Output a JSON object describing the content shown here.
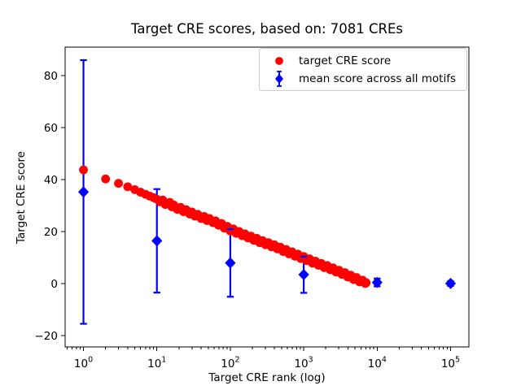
{
  "chart_data": {
    "type": "scatter",
    "title": "Target CRE scores, based on: 7081 CREs",
    "xlabel": "Target CRE rank (log)",
    "ylabel": "Target CRE score",
    "n_cres": 7081,
    "x_scale": "log",
    "grid": false,
    "legend_position": "upper right",
    "xlim": [
      0.5623,
      177828
    ],
    "ylim": [
      -24.3,
      91.0
    ],
    "x_ticks": [
      {
        "value": 1,
        "label": "10^0"
      },
      {
        "value": 10,
        "label": "10^1"
      },
      {
        "value": 100,
        "label": "10^2"
      },
      {
        "value": 1000,
        "label": "10^3"
      },
      {
        "value": 10000,
        "label": "10^4"
      },
      {
        "value": 100000,
        "label": "10^5"
      }
    ],
    "y_ticks": [
      {
        "value": -20,
        "label": "−20"
      },
      {
        "value": 0,
        "label": "0"
      },
      {
        "value": 20,
        "label": "20"
      },
      {
        "value": 40,
        "label": "40"
      },
      {
        "value": 60,
        "label": "60"
      },
      {
        "value": 80,
        "label": "80"
      }
    ],
    "series": [
      {
        "name": "target CRE score",
        "type": "scatter",
        "marker": "circle",
        "color": "#ff0000",
        "points": [
          [
            1,
            43.8
          ],
          [
            2,
            40.3
          ],
          [
            3,
            38.6
          ],
          [
            4,
            37.3
          ],
          [
            5,
            36.2
          ],
          [
            6,
            35.2
          ],
          [
            7,
            34.4
          ],
          [
            8,
            33.7
          ],
          [
            9,
            33.1
          ],
          [
            10,
            32.5
          ],
          [
            11,
            31.5
          ],
          [
            12,
            32.2
          ],
          [
            13,
            30.5
          ],
          [
            15,
            31.3
          ],
          [
            16,
            29.6
          ],
          [
            17,
            30.3
          ],
          [
            19,
            28.6
          ],
          [
            21,
            29.4
          ],
          [
            23,
            27.7
          ],
          [
            25,
            28.5
          ],
          [
            28,
            26.8
          ],
          [
            30,
            27.6
          ],
          [
            33,
            26.0
          ],
          [
            36,
            26.7
          ],
          [
            40,
            25.1
          ],
          [
            44,
            25.9
          ],
          [
            48,
            24.3
          ],
          [
            52,
            25.1
          ],
          [
            58,
            23.5
          ],
          [
            63,
            24.2
          ],
          [
            69,
            22.5
          ],
          [
            76,
            23.2
          ],
          [
            83,
            21.4
          ],
          [
            91,
            22.1
          ],
          [
            100,
            20.3
          ],
          [
            110,
            21.1
          ],
          [
            120,
            19.4
          ],
          [
            132,
            20.1
          ],
          [
            145,
            18.5
          ],
          [
            158,
            19.2
          ],
          [
            174,
            17.6
          ],
          [
            191,
            18.3
          ],
          [
            209,
            16.7
          ],
          [
            229,
            17.5
          ],
          [
            251,
            15.8
          ],
          [
            275,
            16.6
          ],
          [
            302,
            15.0
          ],
          [
            331,
            15.8
          ],
          [
            363,
            14.2
          ],
          [
            398,
            15.0
          ],
          [
            437,
            13.4
          ],
          [
            479,
            14.1
          ],
          [
            525,
            12.4
          ],
          [
            575,
            13.2
          ],
          [
            631,
            11.5
          ],
          [
            692,
            12.3
          ],
          [
            759,
            10.6
          ],
          [
            832,
            11.4
          ],
          [
            912,
            9.7
          ],
          [
            1000,
            10.5
          ],
          [
            1096,
            8.9
          ],
          [
            1202,
            9.6
          ],
          [
            1318,
            7.9
          ],
          [
            1445,
            8.7
          ],
          [
            1585,
            7.1
          ],
          [
            1738,
            7.8
          ],
          [
            1905,
            6.2
          ],
          [
            2089,
            7.0
          ],
          [
            2291,
            5.4
          ],
          [
            2512,
            6.1
          ],
          [
            2754,
            4.5
          ],
          [
            3020,
            5.2
          ],
          [
            3311,
            3.6
          ],
          [
            3631,
            4.3
          ],
          [
            3981,
            2.6
          ],
          [
            4365,
            3.3
          ],
          [
            4786,
            1.6
          ],
          [
            5248,
            2.4
          ],
          [
            5754,
            0.7
          ],
          [
            6310,
            1.4
          ],
          [
            6918,
            0.1
          ],
          [
            7081,
            0.4
          ]
        ]
      },
      {
        "name": "mean score across all motifs",
        "type": "errorbar",
        "marker": "diamond",
        "color": "#0000ff",
        "points": [
          {
            "x": 1,
            "y": 35.3,
            "lo": -15.4,
            "hi": 86.0
          },
          {
            "x": 10,
            "y": 16.5,
            "lo": -3.4,
            "hi": 36.4
          },
          {
            "x": 100,
            "y": 8.0,
            "lo": -5.0,
            "hi": 21.0
          },
          {
            "x": 1000,
            "y": 3.5,
            "lo": -3.5,
            "hi": 10.4
          },
          {
            "x": 10000,
            "y": 0.5,
            "lo": -1.0,
            "hi": 2.0
          },
          {
            "x": 100000,
            "y": 0.1,
            "lo": -0.8,
            "hi": 1.0
          }
        ]
      }
    ]
  }
}
